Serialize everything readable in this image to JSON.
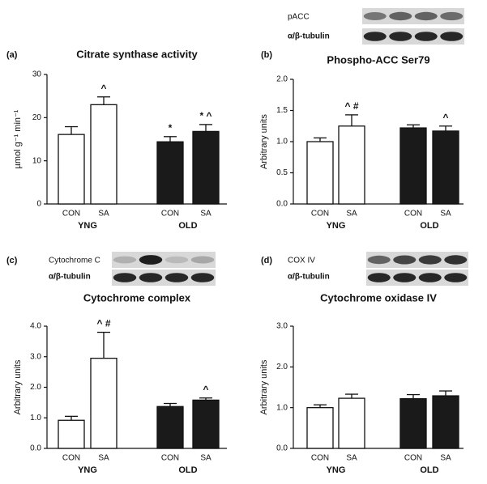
{
  "chart_data": [
    {
      "type": "bar",
      "panel": "(a)",
      "title": "Citrate synthase activity",
      "ylabel": "µmol g⁻¹ min⁻¹",
      "categories": [
        "CON",
        "SA",
        "CON",
        "SA"
      ],
      "groups": [
        "YNG",
        "OLD"
      ],
      "values": [
        16.1,
        23.0,
        14.4,
        16.8
      ],
      "errors": [
        1.8,
        1.8,
        1.2,
        1.6
      ],
      "annotations": [
        null,
        "^",
        "*",
        "* ^"
      ],
      "colors": [
        "#ffffff",
        "#ffffff",
        "#1a1a1a",
        "#1a1a1a"
      ],
      "ylim": [
        0,
        30
      ],
      "yticks": [
        0,
        10,
        20,
        30
      ]
    },
    {
      "type": "bar",
      "panel": "(b)",
      "title": "Phospho-ACC Ser79",
      "ylabel": "Arbitrary units",
      "blot_labels": [
        "pACC",
        "α/β-tubulin"
      ],
      "categories": [
        "CON",
        "SA",
        "CON",
        "SA"
      ],
      "groups": [
        "YNG",
        "OLD"
      ],
      "values": [
        1.0,
        1.25,
        1.22,
        1.17
      ],
      "errors": [
        0.06,
        0.18,
        0.05,
        0.08
      ],
      "annotations": [
        null,
        "^ #",
        null,
        "^"
      ],
      "colors": [
        "#ffffff",
        "#ffffff",
        "#1a1a1a",
        "#1a1a1a"
      ],
      "ylim": [
        0,
        2
      ],
      "yticks": [
        {
          "value": 0,
          "label": "0.0"
        },
        {
          "value": 0.5,
          "label": "0.5"
        },
        {
          "value": 1,
          "label": "1.0"
        },
        {
          "value": 1.5,
          "label": "1.5"
        },
        {
          "value": 2,
          "label": "2.0"
        }
      ]
    },
    {
      "type": "bar",
      "panel": "(c)",
      "title": "Cytochrome complex",
      "ylabel": "Arbitrary units",
      "blot_labels": [
        "Cytochrome C",
        "α/β-tubulin"
      ],
      "categories": [
        "CON",
        "SA",
        "CON",
        "SA"
      ],
      "groups": [
        "YNG",
        "OLD"
      ],
      "values": [
        0.92,
        2.95,
        1.37,
        1.58
      ],
      "errors": [
        0.13,
        0.85,
        0.1,
        0.07
      ],
      "annotations": [
        null,
        "^ #",
        null,
        "^"
      ],
      "colors": [
        "#ffffff",
        "#ffffff",
        "#1a1a1a",
        "#1a1a1a"
      ],
      "ylim": [
        0,
        4
      ],
      "yticks": [
        {
          "value": 0,
          "label": "0.0"
        },
        {
          "value": 1,
          "label": "1.0"
        },
        {
          "value": 2,
          "label": "2.0"
        },
        {
          "value": 3,
          "label": "3.0"
        },
        {
          "value": 4,
          "label": "4.0"
        }
      ]
    },
    {
      "type": "bar",
      "panel": "(d)",
      "title": "Cytochrome oxidase IV",
      "ylabel": "Arbitrary units",
      "blot_labels": [
        "COX IV",
        "α/β-tubulin"
      ],
      "categories": [
        "CON",
        "SA",
        "CON",
        "SA"
      ],
      "groups": [
        "YNG",
        "OLD"
      ],
      "values": [
        1.0,
        1.23,
        1.22,
        1.29
      ],
      "errors": [
        0.07,
        0.1,
        0.1,
        0.12
      ],
      "annotations": [
        null,
        null,
        null,
        null
      ],
      "colors": [
        "#ffffff",
        "#ffffff",
        "#1a1a1a",
        "#1a1a1a"
      ],
      "ylim": [
        0,
        3
      ],
      "yticks": [
        {
          "value": 0,
          "label": "0.0"
        },
        {
          "value": 1,
          "label": "1.0"
        },
        {
          "value": 2,
          "label": "2.0"
        },
        {
          "value": 3,
          "label": "3.0"
        }
      ]
    }
  ]
}
